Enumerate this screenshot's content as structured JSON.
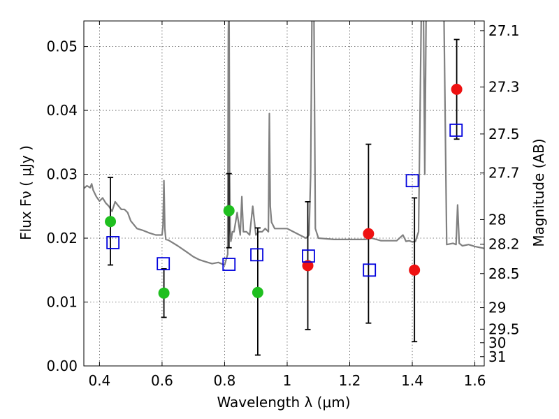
{
  "chart_data": {
    "type": "scatter",
    "xlabel": "Wavelength  λ (μm)",
    "ylabel": "Flux  Fν  ( μJy )",
    "ylabel_right": "Magnitude (AB)",
    "xlim": [
      0.35,
      1.63
    ],
    "ylim": [
      0.0,
      0.054
    ],
    "x_ticks": [
      "0.4",
      "0.6",
      "0.8",
      "1",
      "1.2",
      "1.4",
      "1.6"
    ],
    "y_ticks": [
      "0.00",
      "0.01",
      "0.02",
      "0.03",
      "0.04",
      "0.05"
    ],
    "right_ticks": [
      "27.1",
      "27.3",
      "27.5",
      "27.7",
      "28",
      "28.2",
      "28.5",
      "29",
      "29.5",
      "30",
      "31"
    ],
    "grid": true,
    "colors": {
      "green": "#1fbf1f",
      "red": "#ee1111",
      "square": "#0000dd",
      "spectrum": "#808080",
      "errorbar": "#000000"
    },
    "series": [
      {
        "name": "green filled circles",
        "marker": "circle",
        "color": "green",
        "points": [
          {
            "x": 0.435,
            "y": 0.0226,
            "ylo": 0.0158,
            "yhi": 0.0295
          },
          {
            "x": 0.606,
            "y": 0.0114,
            "ylo": 0.0076,
            "yhi": 0.0152
          },
          {
            "x": 0.814,
            "y": 0.0243,
            "ylo": 0.0185,
            "yhi": 0.0301
          },
          {
            "x": 0.906,
            "y": 0.0115,
            "ylo": 0.0017,
            "yhi": 0.0216
          }
        ]
      },
      {
        "name": "red filled circles",
        "marker": "circle",
        "color": "red",
        "points": [
          {
            "x": 1.066,
            "y": 0.0157,
            "ylo": 0.0057,
            "yhi": 0.0257
          },
          {
            "x": 1.26,
            "y": 0.0207,
            "ylo": 0.0067,
            "yhi": 0.0347
          },
          {
            "x": 1.407,
            "y": 0.015,
            "ylo": 0.0038,
            "yhi": 0.0263
          },
          {
            "x": 1.542,
            "y": 0.0433,
            "ylo": 0.0355,
            "yhi": 0.0511
          }
        ]
      },
      {
        "name": "blue open squares",
        "marker": "square",
        "color": "square",
        "points": [
          {
            "x": 0.443,
            "y": 0.0193
          },
          {
            "x": 0.604,
            "y": 0.016
          },
          {
            "x": 0.814,
            "y": 0.0159
          },
          {
            "x": 0.903,
            "y": 0.0174
          },
          {
            "x": 1.068,
            "y": 0.0172
          },
          {
            "x": 1.263,
            "y": 0.015
          },
          {
            "x": 1.4,
            "y": 0.029
          },
          {
            "x": 1.54,
            "y": 0.0369
          }
        ]
      }
    ],
    "spectrum": {
      "name": "model spectrum",
      "x": [
        0.35,
        0.36,
        0.37,
        0.375,
        0.38,
        0.39,
        0.4,
        0.41,
        0.42,
        0.43,
        0.44,
        0.45,
        0.46,
        0.47,
        0.48,
        0.49,
        0.5,
        0.52,
        0.54,
        0.56,
        0.58,
        0.6,
        0.603,
        0.606,
        0.609,
        0.612,
        0.62,
        0.65,
        0.68,
        0.7,
        0.72,
        0.74,
        0.76,
        0.78,
        0.8,
        0.81,
        0.812,
        0.814,
        0.816,
        0.818,
        0.82,
        0.825,
        0.83,
        0.84,
        0.85,
        0.855,
        0.86,
        0.865,
        0.87,
        0.88,
        0.89,
        0.9,
        0.91,
        0.92,
        0.93,
        0.94,
        0.943,
        0.946,
        0.95,
        0.96,
        0.98,
        1.0,
        1.02,
        1.04,
        1.06,
        1.07,
        1.075,
        1.08,
        1.085,
        1.09,
        1.1,
        1.15,
        1.2,
        1.25,
        1.27,
        1.3,
        1.35,
        1.37,
        1.38,
        1.39,
        1.4,
        1.41,
        1.42,
        1.43,
        1.435,
        1.44,
        1.445,
        1.45,
        1.455,
        1.46,
        1.47,
        1.48,
        1.49,
        1.5,
        1.51,
        1.52,
        1.53,
        1.54,
        1.545,
        1.55,
        1.56,
        1.58,
        1.6,
        1.63
      ],
      "y": [
        0.0278,
        0.0282,
        0.0279,
        0.0285,
        0.0275,
        0.0265,
        0.0258,
        0.0263,
        0.0255,
        0.025,
        0.0242,
        0.0257,
        0.0251,
        0.0245,
        0.0245,
        0.024,
        0.0227,
        0.0215,
        0.0212,
        0.0208,
        0.0205,
        0.0205,
        0.022,
        0.029,
        0.0215,
        0.0198,
        0.0197,
        0.0188,
        0.0178,
        0.0171,
        0.0166,
        0.0163,
        0.016,
        0.0162,
        0.0158,
        0.0175,
        0.052,
        0.06,
        0.03,
        0.0215,
        0.0195,
        0.021,
        0.021,
        0.024,
        0.0205,
        0.0265,
        0.021,
        0.021,
        0.021,
        0.0205,
        0.025,
        0.0205,
        0.021,
        0.021,
        0.0215,
        0.021,
        0.0395,
        0.025,
        0.0225,
        0.0215,
        0.0215,
        0.0215,
        0.021,
        0.0205,
        0.02,
        0.0205,
        0.03,
        0.06,
        0.06,
        0.0215,
        0.02,
        0.0198,
        0.0198,
        0.0198,
        0.02,
        0.0196,
        0.0196,
        0.0205,
        0.0195,
        0.0196,
        0.0194,
        0.0195,
        0.021,
        0.06,
        0.06,
        0.03,
        0.06,
        0.06,
        0.06,
        0.06,
        0.06,
        0.06,
        0.06,
        0.06,
        0.019,
        0.0191,
        0.0192,
        0.019,
        0.0252,
        0.0192,
        0.0188,
        0.019,
        0.0187,
        0.0184
      ]
    }
  }
}
